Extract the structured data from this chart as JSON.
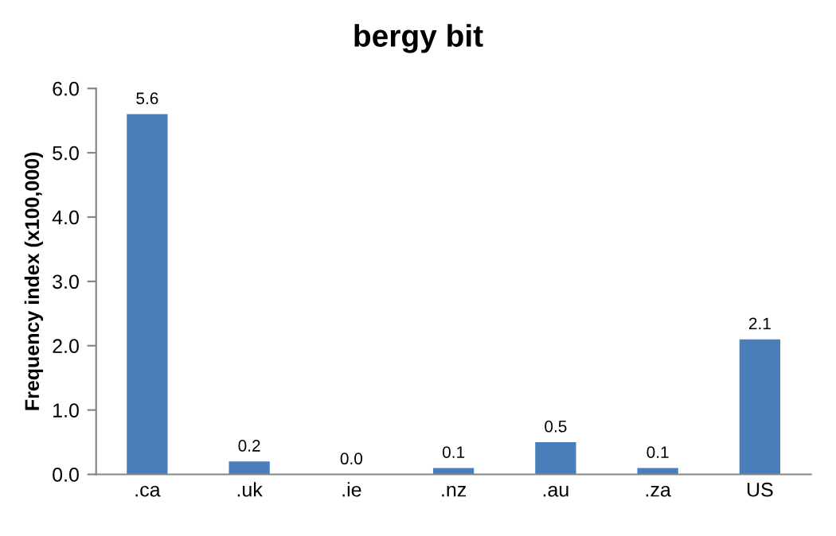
{
  "chart_data": {
    "type": "bar",
    "title": "bergy bit",
    "ylabel": "Frequency index (x100,000)",
    "categories": [
      ".ca",
      ".uk",
      ".ie",
      ".nz",
      ".au",
      ".za",
      "US"
    ],
    "values": [
      5.6,
      0.2,
      0.0,
      0.1,
      0.5,
      0.1,
      2.1
    ],
    "color": "#4a7ebb",
    "ylim": [
      0,
      6
    ],
    "yticks": [
      {
        "value": 0,
        "label": "0.0"
      },
      {
        "value": 1,
        "label": "1.0"
      },
      {
        "value": 2,
        "label": "2.0"
      },
      {
        "value": 3,
        "label": "3.0"
      },
      {
        "value": 4,
        "label": "4.0"
      },
      {
        "value": 5,
        "label": "5.0"
      },
      {
        "value": 6,
        "label": "6.0"
      }
    ],
    "value_labels": [
      "5.6",
      "0.2",
      "0.0",
      "0.1",
      "0.5",
      "0.1",
      "2.1"
    ],
    "grid": false,
    "legend": false
  }
}
